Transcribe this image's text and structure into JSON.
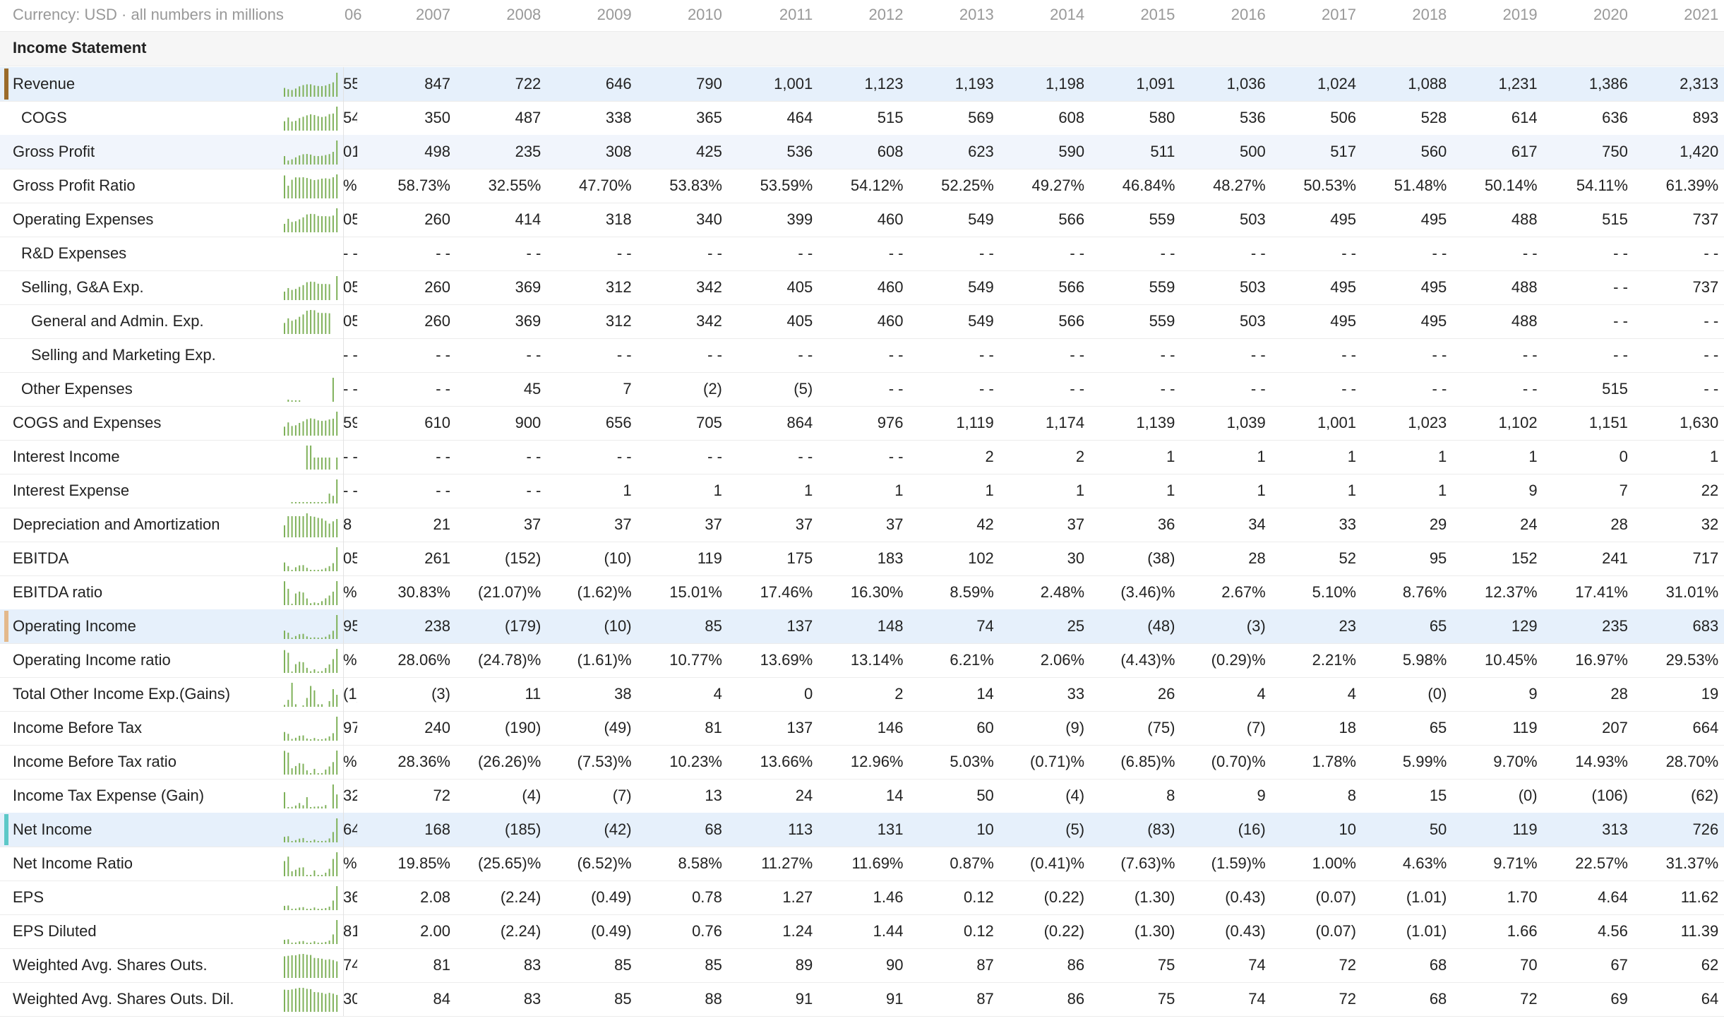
{
  "header": {
    "currency_note": "Currency: USD · all numbers in millions",
    "partial_year": "06",
    "years": [
      "2007",
      "2008",
      "2009",
      "2010",
      "2011",
      "2012",
      "2013",
      "2014",
      "2015",
      "2016",
      "2017",
      "2018",
      "2019",
      "2020",
      "2021"
    ]
  },
  "section": {
    "title": "Income Statement"
  },
  "colors": {
    "revenue": "#9a6b2b",
    "operating_income": "#e3b98c",
    "net_income": "#5cc8c8",
    "spark": "#7fb15a",
    "highlight": "#e6f0fb"
  },
  "rows": [
    {
      "label": "Revenue",
      "indent": 0,
      "bg": "hl",
      "accent": "#9a6b2b",
      "frag": "55",
      "values": [
        "847",
        "722",
        "646",
        "790",
        "1,001",
        "1,123",
        "1,193",
        "1,198",
        "1,091",
        "1,036",
        "1,024",
        "1,088",
        "1,231",
        "1,386",
        "2,313"
      ],
      "spark": [
        847,
        722,
        646,
        790,
        1001,
        1123,
        1193,
        1198,
        1091,
        1036,
        1024,
        1088,
        1231,
        1386,
        2313
      ]
    },
    {
      "label": "COGS",
      "indent": 1,
      "bg": "",
      "accent": "",
      "frag": "54",
      "values": [
        "350",
        "487",
        "338",
        "365",
        "464",
        "515",
        "569",
        "608",
        "580",
        "536",
        "506",
        "528",
        "614",
        "636",
        "893"
      ],
      "spark": [
        350,
        487,
        338,
        365,
        464,
        515,
        569,
        608,
        580,
        536,
        506,
        528,
        614,
        636,
        893
      ]
    },
    {
      "label": "Gross Profit",
      "indent": 0,
      "bg": "alt",
      "accent": "",
      "frag": "01",
      "values": [
        "498",
        "235",
        "308",
        "425",
        "536",
        "608",
        "623",
        "590",
        "511",
        "500",
        "517",
        "560",
        "617",
        "750",
        "1,420"
      ],
      "spark": [
        498,
        235,
        308,
        425,
        536,
        608,
        623,
        590,
        511,
        500,
        517,
        560,
        617,
        750,
        1420
      ]
    },
    {
      "label": "Gross Profit Ratio",
      "indent": 0,
      "bg": "",
      "accent": "",
      "frag": "%",
      "values": [
        "58.73%",
        "32.55%",
        "47.70%",
        "53.83%",
        "53.59%",
        "54.12%",
        "52.25%",
        "49.27%",
        "46.84%",
        "48.27%",
        "50.53%",
        "51.48%",
        "50.14%",
        "54.11%",
        "61.39%"
      ],
      "spark": [
        58.73,
        32.55,
        47.7,
        53.83,
        53.59,
        54.12,
        52.25,
        49.27,
        46.84,
        48.27,
        50.53,
        51.48,
        50.14,
        54.11,
        61.39
      ]
    },
    {
      "label": "Operating Expenses",
      "indent": 0,
      "bg": "",
      "accent": "",
      "frag": "05",
      "values": [
        "260",
        "414",
        "318",
        "340",
        "399",
        "460",
        "549",
        "566",
        "559",
        "503",
        "495",
        "495",
        "488",
        "515",
        "737"
      ],
      "spark": [
        260,
        414,
        318,
        340,
        399,
        460,
        549,
        566,
        559,
        503,
        495,
        495,
        488,
        515,
        737
      ]
    },
    {
      "label": "R&D Expenses",
      "indent": 1,
      "bg": "",
      "accent": "",
      "frag": "- -",
      "values": [
        "- -",
        "- -",
        "- -",
        "- -",
        "- -",
        "- -",
        "- -",
        "- -",
        "- -",
        "- -",
        "- -",
        "- -",
        "- -",
        "- -",
        "- -"
      ],
      "spark": []
    },
    {
      "label": "Selling, G&A Exp.",
      "indent": 1,
      "bg": "",
      "accent": "",
      "frag": "05",
      "values": [
        "260",
        "369",
        "312",
        "342",
        "405",
        "460",
        "549",
        "566",
        "559",
        "503",
        "495",
        "495",
        "488",
        "- -",
        "737"
      ],
      "spark": [
        260,
        369,
        312,
        342,
        405,
        460,
        549,
        566,
        559,
        503,
        495,
        495,
        488,
        0,
        737
      ]
    },
    {
      "label": "General and Admin. Exp.",
      "indent": 2,
      "bg": "",
      "accent": "",
      "frag": "05",
      "values": [
        "260",
        "369",
        "312",
        "342",
        "405",
        "460",
        "549",
        "566",
        "559",
        "503",
        "495",
        "495",
        "488",
        "- -",
        "- -"
      ],
      "spark": [
        260,
        369,
        312,
        342,
        405,
        460,
        549,
        566,
        559,
        503,
        495,
        495,
        488,
        0,
        0
      ]
    },
    {
      "label": "Selling and Marketing Exp.",
      "indent": 2,
      "bg": "",
      "accent": "",
      "frag": "- -",
      "values": [
        "- -",
        "- -",
        "- -",
        "- -",
        "- -",
        "- -",
        "- -",
        "- -",
        "- -",
        "- -",
        "- -",
        "- -",
        "- -",
        "- -",
        "- -"
      ],
      "spark": []
    },
    {
      "label": "Other Expenses",
      "indent": 1,
      "bg": "",
      "accent": "",
      "frag": "- -",
      "values": [
        "- -",
        "45",
        "7",
        "(2)",
        "(5)",
        "- -",
        "- -",
        "- -",
        "- -",
        "- -",
        "- -",
        "- -",
        "- -",
        "515",
        "- -"
      ],
      "spark": [
        0,
        45,
        7,
        2,
        5,
        0,
        0,
        0,
        0,
        0,
        0,
        0,
        0,
        515,
        0
      ]
    },
    {
      "label": "COGS and Expenses",
      "indent": 0,
      "bg": "",
      "accent": "",
      "frag": "59",
      "values": [
        "610",
        "900",
        "656",
        "705",
        "864",
        "976",
        "1,119",
        "1,174",
        "1,139",
        "1,039",
        "1,001",
        "1,023",
        "1,102",
        "1,151",
        "1,630"
      ],
      "spark": [
        610,
        900,
        656,
        705,
        864,
        976,
        1119,
        1174,
        1139,
        1039,
        1001,
        1023,
        1102,
        1151,
        1630
      ]
    },
    {
      "label": "Interest Income",
      "indent": 0,
      "bg": "",
      "accent": "",
      "frag": "- -",
      "values": [
        "- -",
        "- -",
        "- -",
        "- -",
        "- -",
        "- -",
        "2",
        "2",
        "1",
        "1",
        "1",
        "1",
        "1",
        "0",
        "1"
      ],
      "spark": [
        0,
        0,
        0,
        0,
        0,
        0,
        2,
        2,
        1,
        1,
        1,
        1,
        1,
        0,
        1
      ]
    },
    {
      "label": "Interest Expense",
      "indent": 0,
      "bg": "",
      "accent": "",
      "frag": "- -",
      "values": [
        "- -",
        "- -",
        "1",
        "1",
        "1",
        "1",
        "1",
        "1",
        "1",
        "1",
        "1",
        "1",
        "9",
        "7",
        "22"
      ],
      "spark": [
        0,
        0,
        1,
        1,
        1,
        1,
        1,
        1,
        1,
        1,
        1,
        1,
        9,
        7,
        22
      ]
    },
    {
      "label": "Depreciation and Amortization",
      "indent": 0,
      "bg": "",
      "accent": "",
      "frag": "8",
      "values": [
        "21",
        "37",
        "37",
        "37",
        "37",
        "37",
        "42",
        "37",
        "36",
        "34",
        "33",
        "29",
        "24",
        "28",
        "32"
      ],
      "spark": [
        21,
        37,
        37,
        37,
        37,
        37,
        42,
        37,
        36,
        34,
        33,
        29,
        24,
        28,
        32
      ]
    },
    {
      "label": "EBITDA",
      "indent": 0,
      "bg": "",
      "accent": "",
      "frag": "05",
      "values": [
        "261",
        "(152)",
        "(10)",
        "119",
        "175",
        "183",
        "102",
        "30",
        "(38)",
        "28",
        "52",
        "95",
        "152",
        "241",
        "717"
      ],
      "spark": [
        261,
        -152,
        -10,
        119,
        175,
        183,
        102,
        30,
        -38,
        28,
        52,
        95,
        152,
        241,
        717
      ]
    },
    {
      "label": "EBITDA ratio",
      "indent": 0,
      "bg": "",
      "accent": "",
      "frag": "%",
      "values": [
        "30.83%",
        "(21.07)%",
        "(1.62)%",
        "15.01%",
        "17.46%",
        "16.30%",
        "8.59%",
        "2.48%",
        "(3.46)%",
        "2.67%",
        "5.10%",
        "8.76%",
        "12.37%",
        "17.41%",
        "31.01%"
      ],
      "spark": [
        30.83,
        -21.07,
        -1.62,
        15.01,
        17.46,
        16.3,
        8.59,
        2.48,
        -3.46,
        2.67,
        5.1,
        8.76,
        12.37,
        17.41,
        31.01
      ]
    },
    {
      "label": "Operating Income",
      "indent": 0,
      "bg": "hl",
      "accent": "#e3b98c",
      "frag": "95",
      "values": [
        "238",
        "(179)",
        "(10)",
        "85",
        "137",
        "148",
        "74",
        "25",
        "(48)",
        "(3)",
        "23",
        "65",
        "129",
        "235",
        "683"
      ],
      "spark": [
        238,
        -179,
        -10,
        85,
        137,
        148,
        74,
        25,
        -48,
        -3,
        23,
        65,
        129,
        235,
        683
      ]
    },
    {
      "label": "Operating Income ratio",
      "indent": 0,
      "bg": "",
      "accent": "",
      "frag": "%",
      "values": [
        "28.06%",
        "(24.78)%",
        "(1.61)%",
        "10.77%",
        "13.69%",
        "13.14%",
        "6.21%",
        "2.06%",
        "(4.43)%",
        "(0.29)%",
        "2.21%",
        "5.98%",
        "10.45%",
        "16.97%",
        "29.53%"
      ],
      "spark": [
        28.06,
        -24.78,
        -1.61,
        10.77,
        13.69,
        13.14,
        6.21,
        2.06,
        -4.43,
        -0.29,
        2.21,
        5.98,
        10.45,
        16.97,
        29.53
      ]
    },
    {
      "label": "Total Other Income Exp.(Gains)",
      "indent": 0,
      "bg": "",
      "accent": "",
      "frag": "(1)",
      "values": [
        "(3)",
        "11",
        "38",
        "4",
        "0",
        "2",
        "14",
        "33",
        "26",
        "4",
        "4",
        "(0)",
        "9",
        "28",
        "19"
      ],
      "spark": [
        -3,
        11,
        38,
        4,
        0,
        2,
        14,
        33,
        26,
        4,
        4,
        0,
        9,
        28,
        19
      ]
    },
    {
      "label": "Income Before Tax",
      "indent": 0,
      "bg": "",
      "accent": "",
      "frag": "97",
      "values": [
        "240",
        "(190)",
        "(49)",
        "81",
        "137",
        "146",
        "60",
        "(9)",
        "(75)",
        "(7)",
        "18",
        "65",
        "119",
        "207",
        "664"
      ],
      "spark": [
        240,
        -190,
        -49,
        81,
        137,
        146,
        60,
        -9,
        -75,
        -7,
        18,
        65,
        119,
        207,
        664
      ]
    },
    {
      "label": "Income Before Tax ratio",
      "indent": 0,
      "bg": "",
      "accent": "",
      "frag": "%",
      "values": [
        "28.36%",
        "(26.26)%",
        "(7.53)%",
        "10.23%",
        "13.66%",
        "12.96%",
        "5.03%",
        "(0.71)%",
        "(6.85)%",
        "(0.70)%",
        "1.78%",
        "5.99%",
        "9.70%",
        "14.93%",
        "28.70%"
      ],
      "spark": [
        28.36,
        -26.26,
        -7.53,
        10.23,
        13.66,
        12.96,
        5.03,
        -0.71,
        -6.85,
        -0.7,
        1.78,
        5.99,
        9.7,
        14.93,
        28.7
      ]
    },
    {
      "label": "Income Tax Expense (Gain)",
      "indent": 0,
      "bg": "",
      "accent": "",
      "frag": "32",
      "values": [
        "72",
        "(4)",
        "(7)",
        "13",
        "24",
        "14",
        "50",
        "(4)",
        "8",
        "9",
        "8",
        "15",
        "(0)",
        "(106)",
        "(62)"
      ],
      "spark": [
        72,
        -4,
        -7,
        13,
        24,
        14,
        50,
        -4,
        8,
        9,
        8,
        15,
        0,
        -106,
        -62
      ]
    },
    {
      "label": "Net Income",
      "indent": 0,
      "bg": "hl",
      "accent": "#5cc8c8",
      "frag": "64",
      "values": [
        "168",
        "(185)",
        "(42)",
        "68",
        "113",
        "131",
        "10",
        "(5)",
        "(83)",
        "(16)",
        "10",
        "50",
        "119",
        "313",
        "726"
      ],
      "spark": [
        168,
        -185,
        -42,
        68,
        113,
        131,
        10,
        -5,
        -83,
        -16,
        10,
        50,
        119,
        313,
        726
      ]
    },
    {
      "label": "Net Income Ratio",
      "indent": 0,
      "bg": "",
      "accent": "",
      "frag": "%",
      "values": [
        "19.85%",
        "(25.65)%",
        "(6.52)%",
        "8.58%",
        "11.27%",
        "11.69%",
        "0.87%",
        "(0.41)%",
        "(7.63)%",
        "(1.59)%",
        "1.00%",
        "4.63%",
        "9.71%",
        "22.57%",
        "31.37%"
      ],
      "spark": [
        19.85,
        -25.65,
        -6.52,
        8.58,
        11.27,
        11.69,
        0.87,
        -0.41,
        -7.63,
        -1.59,
        1.0,
        4.63,
        9.71,
        22.57,
        31.37
      ]
    },
    {
      "label": "EPS",
      "indent": 0,
      "bg": "",
      "accent": "",
      "frag": "36",
      "values": [
        "2.08",
        "(2.24)",
        "(0.49)",
        "0.78",
        "1.27",
        "1.46",
        "0.12",
        "(0.22)",
        "(1.30)",
        "(0.43)",
        "(0.07)",
        "(1.01)",
        "1.70",
        "4.64",
        "11.62"
      ],
      "spark": [
        2.08,
        -2.24,
        -0.49,
        0.78,
        1.27,
        1.46,
        0.12,
        -0.22,
        -1.3,
        -0.43,
        -0.07,
        -1.01,
        1.7,
        4.64,
        11.62
      ]
    },
    {
      "label": "EPS Diluted",
      "indent": 0,
      "bg": "",
      "accent": "",
      "frag": "81",
      "values": [
        "2.00",
        "(2.24)",
        "(0.49)",
        "0.76",
        "1.24",
        "1.44",
        "0.12",
        "(0.22)",
        "(1.30)",
        "(0.43)",
        "(0.07)",
        "(1.01)",
        "1.66",
        "4.56",
        "11.39"
      ],
      "spark": [
        2.0,
        -2.24,
        -0.49,
        0.76,
        1.24,
        1.44,
        0.12,
        -0.22,
        -1.3,
        -0.43,
        -0.07,
        -1.01,
        1.66,
        4.56,
        11.39
      ]
    },
    {
      "label": "Weighted Avg. Shares Outs.",
      "indent": 0,
      "bg": "",
      "accent": "",
      "frag": "74",
      "values": [
        "81",
        "83",
        "85",
        "85",
        "89",
        "90",
        "87",
        "86",
        "75",
        "74",
        "72",
        "68",
        "70",
        "67",
        "62"
      ],
      "spark": [
        81,
        83,
        85,
        85,
        89,
        90,
        87,
        86,
        75,
        74,
        72,
        68,
        70,
        67,
        62
      ]
    },
    {
      "label": "Weighted Avg. Shares Outs. Dil.",
      "indent": 0,
      "bg": "",
      "accent": "",
      "frag": "30",
      "values": [
        "84",
        "83",
        "85",
        "88",
        "91",
        "91",
        "87",
        "86",
        "75",
        "74",
        "72",
        "68",
        "72",
        "69",
        "64"
      ],
      "spark": [
        84,
        83,
        85,
        88,
        91,
        91,
        87,
        86,
        75,
        74,
        72,
        68,
        72,
        69,
        64
      ]
    }
  ]
}
